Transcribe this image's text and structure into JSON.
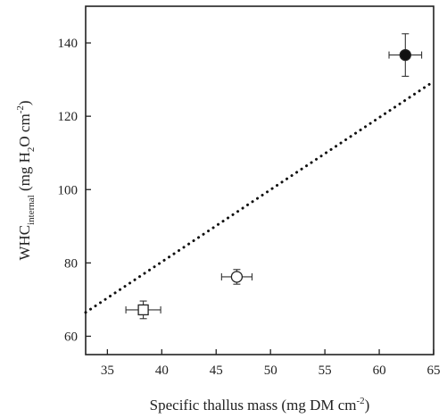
{
  "chart_data": {
    "type": "scatter",
    "xlabel": {
      "main": "Specific thallus mass (mg DM cm",
      "sup": "-2",
      "close": ")"
    },
    "ylabel": {
      "pre": "WHC",
      "sub": "internal",
      "mid": " (mg H",
      "sub2": "2",
      "mid2": "O cm",
      "sup": "-2",
      "close": ")"
    },
    "xlim": [
      33,
      65
    ],
    "ylim": [
      55,
      150
    ],
    "xticks": [
      35,
      40,
      45,
      50,
      55,
      60,
      65
    ],
    "yticks": [
      60,
      80,
      100,
      120,
      140
    ],
    "grid": false,
    "points": [
      {
        "x": 38.3,
        "y": 67.2,
        "xerr": 1.6,
        "yerr": 2.4,
        "marker": "square",
        "fill": "#ffffff"
      },
      {
        "x": 46.9,
        "y": 76.2,
        "xerr": 1.4,
        "yerr": 2.0,
        "marker": "circle",
        "fill": "#ffffff"
      },
      {
        "x": 62.4,
        "y": 136.7,
        "xerr": 1.5,
        "yerr": 5.8,
        "marker": "circle",
        "fill": "#111111"
      }
    ],
    "trendline": {
      "style": "dotted",
      "x": [
        33,
        65
      ],
      "y": [
        66.5,
        129.5
      ]
    }
  }
}
